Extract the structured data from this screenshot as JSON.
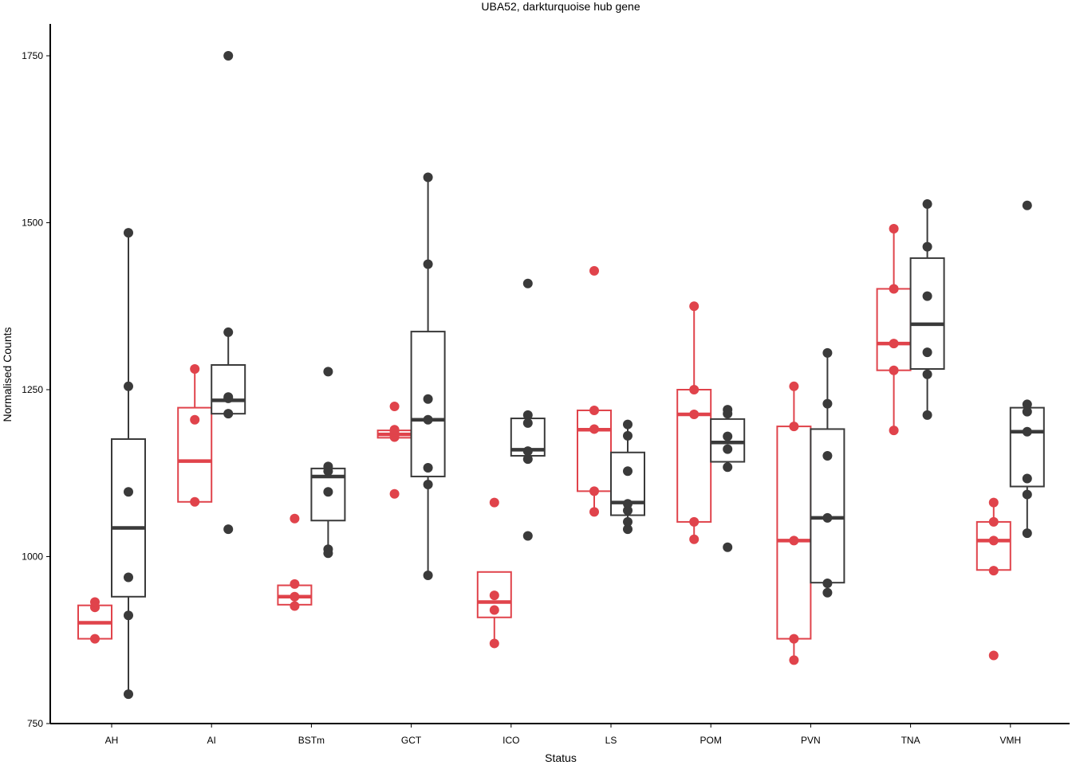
{
  "chart_data": {
    "type": "boxplot",
    "title": "UBA52, darkturquoise hub gene",
    "xlabel": "Status",
    "ylabel": "Normalised Counts",
    "ylim": [
      750,
      1800
    ],
    "yticks": [
      750,
      1000,
      1250,
      1500,
      1750
    ],
    "categories": [
      "AH",
      "AI",
      "BSTm",
      "GCT",
      "ICO",
      "LS",
      "POM",
      "PVN",
      "TNA",
      "VMH"
    ],
    "colors": {
      "red": "#e0434b",
      "dark": "#3a3a3a"
    },
    "groups": [
      {
        "category": "AH",
        "red": {
          "q1": 877,
          "median": 901,
          "q3": 927,
          "lower": 877,
          "upper": 927,
          "points": [
            877,
            924,
            932
          ]
        },
        "dark": {
          "q1": 940,
          "median": 1043,
          "q3": 1176,
          "lower": 794,
          "upper": 1485,
          "points": [
            794,
            912,
            969,
            1097,
            1255,
            1485
          ]
        }
      },
      {
        "category": "AI",
        "red": {
          "q1": 1082,
          "median": 1143,
          "q3": 1223,
          "lower": 1082,
          "upper": 1281,
          "points": [
            1082,
            1205,
            1281
          ]
        },
        "dark": {
          "q1": 1214,
          "median": 1234,
          "q3": 1287,
          "lower": 1214,
          "upper": 1336,
          "points": [
            1041,
            1214,
            1237,
            1239,
            1336,
            1750
          ]
        }
      },
      {
        "category": "BSTm",
        "red": {
          "q1": 928,
          "median": 940,
          "q3": 957,
          "lower": 928,
          "upper": 957,
          "points": [
            926,
            940,
            959,
            1057
          ]
        },
        "dark": {
          "q1": 1054,
          "median": 1120,
          "q3": 1132,
          "lower": 1005,
          "upper": 1135,
          "points": [
            1005,
            1011,
            1097,
            1128,
            1135,
            1277
          ]
        }
      },
      {
        "category": "GCT",
        "red": {
          "q1": 1178,
          "median": 1183,
          "q3": 1189,
          "lower": 1178,
          "upper": 1189,
          "points": [
            1094,
            1179,
            1187,
            1190,
            1225
          ]
        },
        "dark": {
          "q1": 1120,
          "median": 1205,
          "q3": 1337,
          "lower": 972,
          "upper": 1568,
          "points": [
            972,
            1108,
            1133,
            1205,
            1236,
            1438,
            1568
          ]
        }
      },
      {
        "category": "ICO",
        "red": {
          "q1": 909,
          "median": 932,
          "q3": 977,
          "lower": 870,
          "upper": 977,
          "points": [
            870,
            920,
            942,
            1081
          ]
        },
        "dark": {
          "q1": 1151,
          "median": 1160,
          "q3": 1207,
          "lower": 1146,
          "upper": 1212,
          "points": [
            1031,
            1146,
            1158,
            1200,
            1212,
            1409
          ]
        }
      },
      {
        "category": "LS",
        "red": {
          "q1": 1098,
          "median": 1190,
          "q3": 1219,
          "lower": 1067,
          "upper": 1219,
          "points": [
            1067,
            1098,
            1191,
            1219,
            1428
          ]
        },
        "dark": {
          "q1": 1062,
          "median": 1081,
          "q3": 1156,
          "lower": 1041,
          "upper": 1198,
          "points": [
            1041,
            1052,
            1069,
            1079,
            1128,
            1181,
            1198
          ]
        }
      },
      {
        "category": "POM",
        "red": {
          "q1": 1052,
          "median": 1213,
          "q3": 1250,
          "lower": 1026,
          "upper": 1375,
          "points": [
            1026,
            1052,
            1213,
            1250,
            1375
          ]
        },
        "dark": {
          "q1": 1142,
          "median": 1171,
          "q3": 1206,
          "lower": 1134,
          "upper": 1220,
          "points": [
            1014,
            1134,
            1161,
            1180,
            1214,
            1220
          ]
        }
      },
      {
        "category": "PVN",
        "red": {
          "q1": 877,
          "median": 1024,
          "q3": 1195,
          "lower": 845,
          "upper": 1255,
          "points": [
            845,
            877,
            1024,
            1195,
            1255
          ]
        },
        "dark": {
          "q1": 961,
          "median": 1058,
          "q3": 1191,
          "lower": 946,
          "upper": 1305,
          "points": [
            946,
            960,
            1058,
            1151,
            1229,
            1305
          ]
        }
      },
      {
        "category": "TNA",
        "red": {
          "q1": 1279,
          "median": 1319,
          "q3": 1401,
          "lower": 1189,
          "upper": 1491,
          "points": [
            1189,
            1279,
            1319,
            1401,
            1491
          ]
        },
        "dark": {
          "q1": 1281,
          "median": 1348,
          "q3": 1447,
          "lower": 1212,
          "upper": 1528,
          "points": [
            1212,
            1273,
            1306,
            1390,
            1464,
            1528
          ]
        }
      },
      {
        "category": "VMH",
        "red": {
          "q1": 980,
          "median": 1024,
          "q3": 1052,
          "lower": 980,
          "upper": 1081,
          "points": [
            852,
            979,
            1024,
            1052,
            1081
          ]
        },
        "dark": {
          "q1": 1105,
          "median": 1187,
          "q3": 1223,
          "lower": 1035,
          "upper": 1228,
          "points": [
            1035,
            1093,
            1117,
            1187,
            1217,
            1228,
            1526
          ]
        }
      }
    ]
  }
}
